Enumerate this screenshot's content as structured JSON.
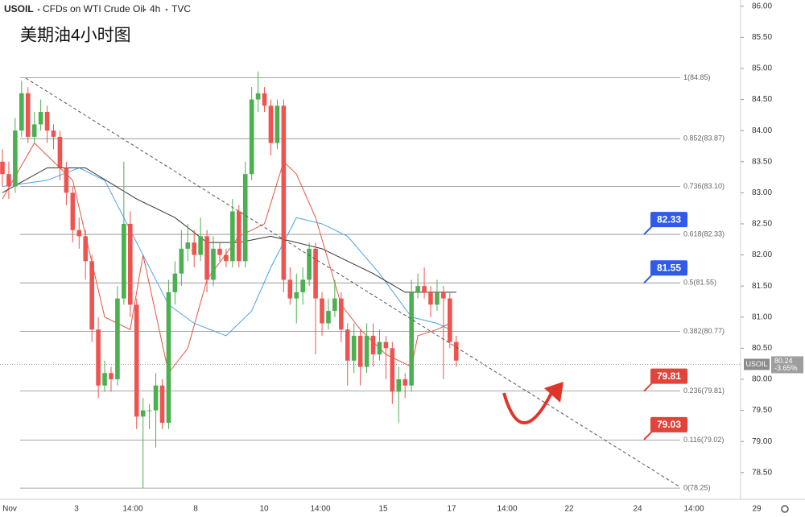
{
  "chart_data": {
    "type": "candlestick",
    "symbol": "USOIL",
    "description": "CFDs on WTI Crude Oil",
    "interval": "4h",
    "exchange": "TVC",
    "title": "美期油4小时图",
    "up_color": "#4caf50",
    "down_color": "#ef5350",
    "candles": [
      [
        83.5,
        83.7,
        83.1,
        83.3
      ],
      [
        83.3,
        83.5,
        82.9,
        83.1
      ],
      [
        83.1,
        84.2,
        83.0,
        84.0
      ],
      [
        84.0,
        84.8,
        83.9,
        84.6
      ],
      [
        84.6,
        84.7,
        83.8,
        83.9
      ],
      [
        83.9,
        84.3,
        83.8,
        84.1
      ],
      [
        84.1,
        84.5,
        84.0,
        84.3
      ],
      [
        84.3,
        84.4,
        83.8,
        84.0
      ],
      [
        84.0,
        84.1,
        83.7,
        83.9
      ],
      [
        83.9,
        84.0,
        83.2,
        83.4
      ],
      [
        83.4,
        83.5,
        82.8,
        83.0
      ],
      [
        83.0,
        83.1,
        82.2,
        82.4
      ],
      [
        82.4,
        82.6,
        82.1,
        82.3
      ],
      [
        82.3,
        82.4,
        81.6,
        81.9
      ],
      [
        81.9,
        82.0,
        80.6,
        80.8
      ],
      [
        80.8,
        81.0,
        79.7,
        79.9
      ],
      [
        79.9,
        80.3,
        79.8,
        80.1
      ],
      [
        80.1,
        80.2,
        79.8,
        80.0
      ],
      [
        80.0,
        81.5,
        79.9,
        81.3
      ],
      [
        81.3,
        83.5,
        81.2,
        82.5
      ],
      [
        82.5,
        82.7,
        81.0,
        81.2
      ],
      [
        81.2,
        81.3,
        79.2,
        79.4
      ],
      [
        79.4,
        79.7,
        78.25,
        79.5
      ],
      [
        79.5,
        79.6,
        79.2,
        79.5
      ],
      [
        79.5,
        80.1,
        78.9,
        79.9
      ],
      [
        79.9,
        80.0,
        79.2,
        79.3
      ],
      [
        79.3,
        81.6,
        79.2,
        81.4
      ],
      [
        81.4,
        81.9,
        81.2,
        81.7
      ],
      [
        81.7,
        82.4,
        81.5,
        82.1
      ],
      [
        82.1,
        82.5,
        81.9,
        82.2
      ],
      [
        82.2,
        82.4,
        81.8,
        82.0
      ],
      [
        82.0,
        82.6,
        81.9,
        82.3
      ],
      [
        82.3,
        82.4,
        81.4,
        81.6
      ],
      [
        81.6,
        82.3,
        81.5,
        82.1
      ],
      [
        82.1,
        82.2,
        81.9,
        82.0
      ],
      [
        82.0,
        82.1,
        81.8,
        81.9
      ],
      [
        81.9,
        82.9,
        81.8,
        82.7
      ],
      [
        82.7,
        82.8,
        81.8,
        81.9
      ],
      [
        81.9,
        83.5,
        81.8,
        83.3
      ],
      [
        83.3,
        84.7,
        83.2,
        84.5
      ],
      [
        84.5,
        84.95,
        84.3,
        84.6
      ],
      [
        84.6,
        84.7,
        84.3,
        84.4
      ],
      [
        84.4,
        84.5,
        83.6,
        83.8
      ],
      [
        83.8,
        84.5,
        83.7,
        84.4
      ],
      [
        84.4,
        84.5,
        81.4,
        81.6
      ],
      [
        81.6,
        81.8,
        81.2,
        81.3
      ],
      [
        81.3,
        81.7,
        80.9,
        81.4
      ],
      [
        81.4,
        81.8,
        81.2,
        81.6
      ],
      [
        81.6,
        82.2,
        81.5,
        82.1
      ],
      [
        82.1,
        82.2,
        80.4,
        81.3
      ],
      [
        81.3,
        81.4,
        80.7,
        80.9
      ],
      [
        80.9,
        81.3,
        80.8,
        81.1
      ],
      [
        81.1,
        81.6,
        81.0,
        81.3
      ],
      [
        81.3,
        81.4,
        80.6,
        80.8
      ],
      [
        80.8,
        80.9,
        79.9,
        80.3
      ],
      [
        80.3,
        80.9,
        80.1,
        80.7
      ],
      [
        80.7,
        80.8,
        79.9,
        80.2
      ],
      [
        80.2,
        80.9,
        80.1,
        80.7
      ],
      [
        80.7,
        80.9,
        80.2,
        80.4
      ],
      [
        80.4,
        80.8,
        80.3,
        80.6
      ],
      [
        80.6,
        80.7,
        80.0,
        80.5
      ],
      [
        80.5,
        80.6,
        79.6,
        79.8
      ],
      [
        79.8,
        80.2,
        79.3,
        80.0
      ],
      [
        80.0,
        80.1,
        79.7,
        79.9
      ],
      [
        79.9,
        81.6,
        79.8,
        81.4
      ],
      [
        81.4,
        81.7,
        81.3,
        81.5
      ],
      [
        81.5,
        81.8,
        81.3,
        81.4
      ],
      [
        81.4,
        81.5,
        81.0,
        81.2
      ],
      [
        81.2,
        81.6,
        81.1,
        81.4
      ],
      [
        81.4,
        81.5,
        80.0,
        81.3
      ],
      [
        81.3,
        81.4,
        80.5,
        80.6
      ],
      [
        80.6,
        80.7,
        80.2,
        80.3
      ]
    ],
    "indicators": [
      {
        "color": "#e8553e",
        "x": [
          0,
          5,
          11,
          16,
          20,
          22,
          26,
          29,
          32,
          37,
          41,
          44,
          46,
          49,
          53,
          56,
          60,
          64,
          65,
          68,
          70
        ],
        "values": [
          82.9,
          83.8,
          83.2,
          81.0,
          80.8,
          82.0,
          80.1,
          80.5,
          81.6,
          82.3,
          82.5,
          83.5,
          83.3,
          82.6,
          81.2,
          80.8,
          80.4,
          80.2,
          80.7,
          80.8,
          80.9
        ]
      },
      {
        "color": "#4aa3e8",
        "x": [
          0,
          7,
          12,
          16,
          22,
          26,
          30,
          35,
          39,
          42,
          46,
          50,
          54,
          59,
          64,
          68,
          70
        ],
        "values": [
          83.1,
          83.2,
          83.4,
          83.2,
          82.0,
          81.2,
          80.9,
          80.7,
          81.1,
          81.8,
          82.6,
          82.5,
          82.3,
          81.7,
          81.0,
          80.9,
          80.8
        ]
      },
      {
        "color": "#333333",
        "x": [
          0,
          7,
          13,
          21,
          27,
          32,
          37,
          42,
          50,
          58,
          63,
          68,
          71
        ],
        "values": [
          83.0,
          83.4,
          83.4,
          82.9,
          82.6,
          82.2,
          82.2,
          82.3,
          82.1,
          81.7,
          81.4,
          81.4,
          81.4
        ]
      }
    ],
    "fib_levels": [
      {
        "value": 84.85,
        "label": "1(84.85)"
      },
      {
        "value": 83.87,
        "label": "0.852(83.87)"
      },
      {
        "value": 83.1,
        "label": "0.736(83.10)"
      },
      {
        "value": 82.33,
        "label": "0.618(82.33)"
      },
      {
        "value": 81.55,
        "label": "0.5(81.55)"
      },
      {
        "value": 80.77,
        "label": "0.382(80.77)"
      },
      {
        "value": 79.81,
        "label": "0.236(79.81)"
      },
      {
        "value": 79.02,
        "label": "0.116(79.02)"
      },
      {
        "value": 78.25,
        "label": "0(78.25)"
      }
    ],
    "price_badges": [
      {
        "value": 82.33,
        "color": "#2f5be8"
      },
      {
        "value": 81.55,
        "color": "#2f5be8"
      },
      {
        "value": 79.81,
        "color": "#e0443a"
      },
      {
        "value": 79.03,
        "color": "#e0443a"
      }
    ],
    "current_price": 80.24,
    "current_change": "-3.65%",
    "ylim": [
      78.07,
      86.1
    ],
    "yticks": [
      {
        "value": 78.5,
        "label": "78.50"
      },
      {
        "value": 79,
        "label": "79.00"
      },
      {
        "value": 79.5,
        "label": "79.50"
      },
      {
        "value": 80,
        "label": "80.00"
      },
      {
        "value": 80.5,
        "label": "80.50"
      },
      {
        "value": 81,
        "label": "81.00"
      },
      {
        "value": 81.5,
        "label": "81.50"
      },
      {
        "value": 82,
        "label": "82.00"
      },
      {
        "value": 82.5,
        "label": "82.50"
      },
      {
        "value": 83,
        "label": "83.00"
      },
      {
        "value": 83.5,
        "label": "83.50"
      },
      {
        "value": 84,
        "label": "84.00"
      },
      {
        "value": 84.5,
        "label": "84.50"
      },
      {
        "value": 85,
        "label": "85.00"
      },
      {
        "value": 85.5,
        "label": "85.50"
      },
      {
        "value": 86,
        "label": "86.00"
      }
    ],
    "x_labels": [
      "Nov",
      "3",
      "14:00",
      "8",
      "10",
      "14:00",
      "15",
      "17",
      "14:00",
      "22",
      "24",
      "14:00",
      "29"
    ]
  }
}
